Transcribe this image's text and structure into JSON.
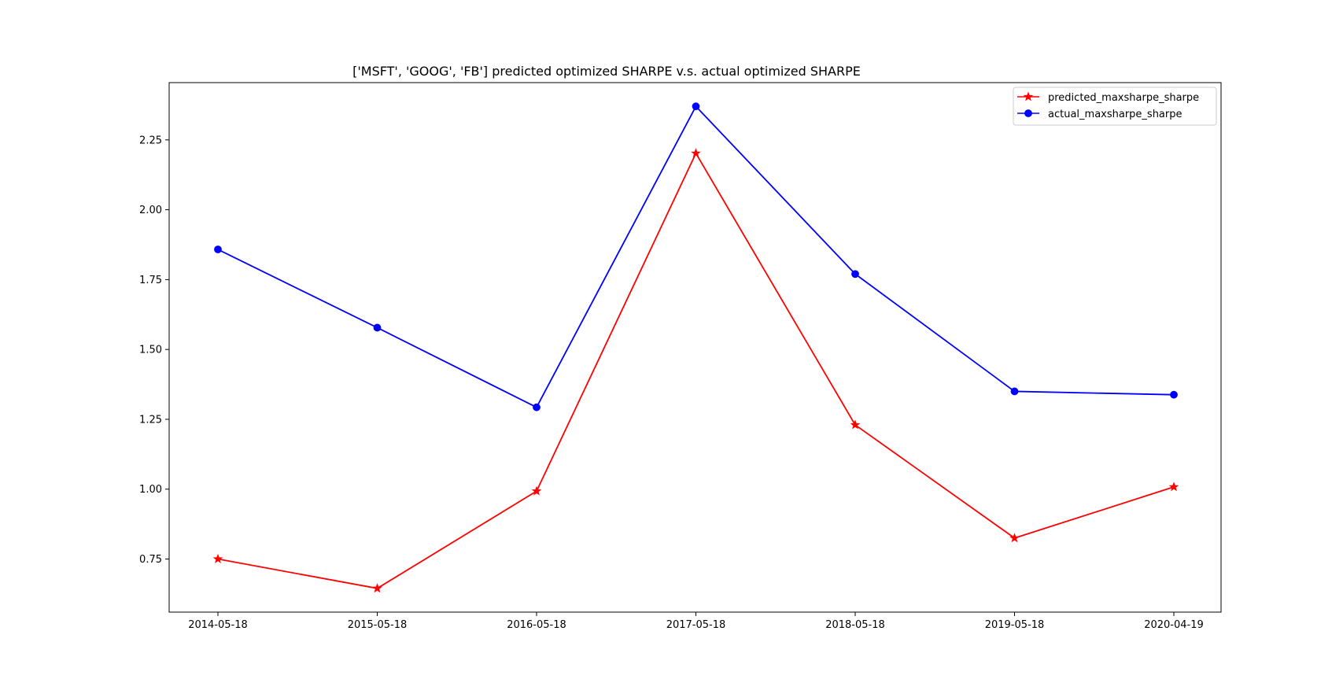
{
  "chart_data": {
    "type": "line",
    "title": "['MSFT', 'GOOG', 'FB'] predicted optimized SHARPE v.s. actual optimized SHARPE",
    "xlabel": "",
    "ylabel": "",
    "categories": [
      "2014-05-18",
      "2015-05-18",
      "2016-05-18",
      "2017-05-18",
      "2018-05-18",
      "2019-05-18",
      "2020-04-19"
    ],
    "ylim": [
      0.56,
      2.455
    ],
    "yticks": [
      "0.75",
      "1.00",
      "1.25",
      "1.50",
      "1.75",
      "2.00",
      "2.25"
    ],
    "grid": false,
    "legend_position": "upper right",
    "series": [
      {
        "name": "predicted_maxsharpe_sharpe",
        "color": "#ff0000",
        "marker": "star",
        "values": [
          0.75,
          0.645,
          0.993,
          2.202,
          1.23,
          0.825,
          1.008
        ]
      },
      {
        "name": "actual_maxsharpe_sharpe",
        "color": "#0000ff",
        "marker": "circle",
        "values": [
          1.858,
          1.578,
          1.293,
          2.37,
          1.77,
          1.35,
          1.338
        ]
      }
    ]
  }
}
